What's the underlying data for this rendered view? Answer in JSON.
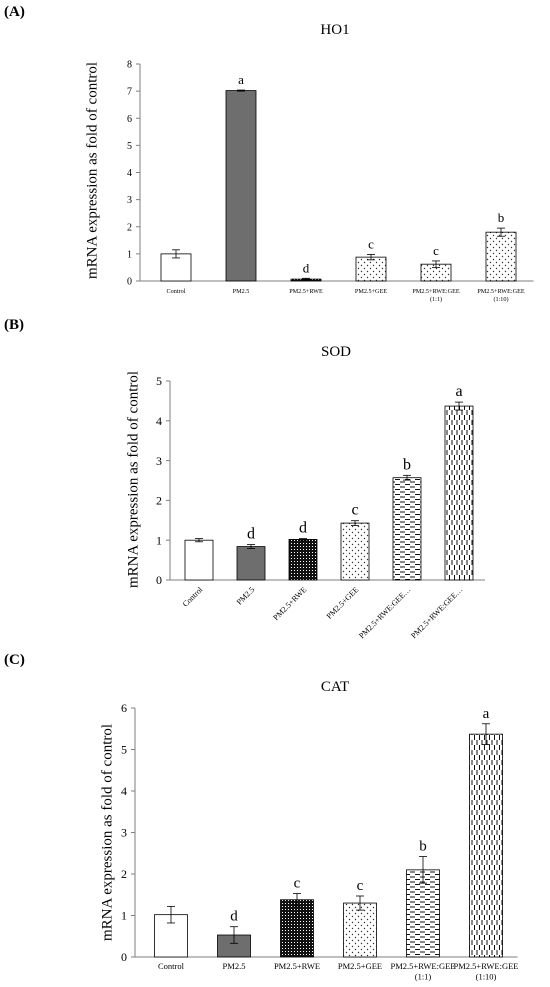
{
  "patterns": {
    "control": "white",
    "pm25": "gray-solid",
    "rwe": "black-dots",
    "gee": "sparse-dots",
    "mix11": "dashes",
    "mix110": "vertical-dashes"
  },
  "chart_data": [
    {
      "type": "bar",
      "panel_label": "(A)",
      "title": "HO1",
      "xlabel": "",
      "ylabel": "mRNA expression as fold of control",
      "ylim": [
        0,
        8
      ],
      "yticks": [
        "0",
        "1",
        "2",
        "3",
        "4",
        "5",
        "6",
        "7",
        "8"
      ],
      "categories": [
        "Control",
        "PM2.5",
        "PM2.5+RWE",
        "PM2.5+GEE",
        "PM2.5+RWE:GEE",
        "PM2.5+RWE:GEE"
      ],
      "category_sublabels": [
        "",
        "",
        "",
        "",
        "(1:1)",
        "(1:10)"
      ],
      "values": [
        1.0,
        7.02,
        0.07,
        0.88,
        0.62,
        1.8
      ],
      "errors": [
        0.15,
        0.02,
        0.03,
        0.1,
        0.12,
        0.15
      ],
      "letters": [
        "",
        "a",
        "d",
        "c",
        "c",
        "b"
      ],
      "fills": [
        "control",
        "pm25",
        "rwe",
        "gee",
        "gee",
        "gee"
      ]
    },
    {
      "type": "bar",
      "panel_label": "(B)",
      "title": "SOD",
      "xlabel": "",
      "ylabel": "mRNA expression  as fold of control",
      "ylim": [
        0,
        5
      ],
      "yticks": [
        "0",
        "1",
        "2",
        "3",
        "4",
        "5"
      ],
      "categories": [
        "Control",
        "PM2.5",
        "PM2.5+RWE",
        "PM2.5+GEE",
        "PM2.5+RWE:GEE…",
        "PM2.5+RWE:GEE…"
      ],
      "category_sublabels": [
        "",
        "",
        "",
        "",
        "",
        ""
      ],
      "values": [
        1.0,
        0.84,
        1.02,
        1.43,
        2.57,
        4.37
      ],
      "errors": [
        0.04,
        0.05,
        0.02,
        0.06,
        0.06,
        0.1
      ],
      "letters": [
        "",
        "d",
        "d",
        "c",
        "b",
        "a"
      ],
      "fills": [
        "control",
        "pm25",
        "rwe",
        "gee",
        "mix11",
        "mix110"
      ]
    },
    {
      "type": "bar",
      "panel_label": "(C)",
      "title": "CAT",
      "xlabel": "",
      "ylabel": "mRNA expression as fold of control",
      "ylim": [
        0,
        6
      ],
      "yticks": [
        "0",
        "1",
        "2",
        "3",
        "4",
        "5",
        "6"
      ],
      "categories": [
        "Control",
        "PM2.5",
        "PM2.5+RWE",
        "PM2.5+GEE",
        "PM2.5+RWE:GEE",
        "PM2.5+RWE:GEE"
      ],
      "category_sublabels": [
        "",
        "",
        "",
        "",
        "(1:1)",
        "(1:10)"
      ],
      "values": [
        1.02,
        0.53,
        1.38,
        1.3,
        2.1,
        5.37
      ],
      "errors": [
        0.2,
        0.2,
        0.15,
        0.17,
        0.32,
        0.25
      ],
      "letters": [
        "",
        "d",
        "c",
        "c",
        "b",
        "a"
      ],
      "fills": [
        "control",
        "pm25",
        "rwe",
        "gee",
        "mix11",
        "mix110"
      ]
    }
  ]
}
